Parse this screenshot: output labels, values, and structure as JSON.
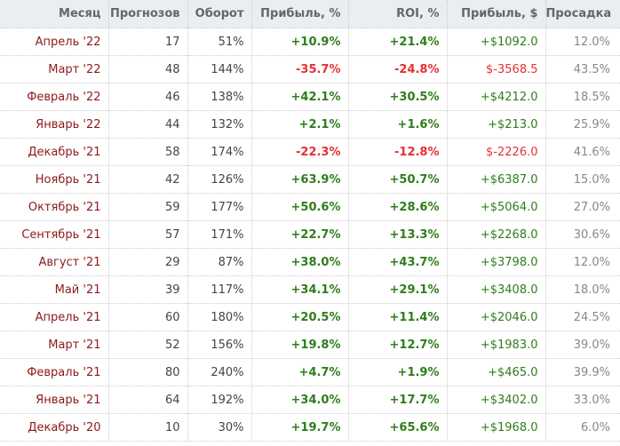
{
  "headers": [
    "Месяц",
    "Прогнозов",
    "Оборот",
    "Прибыль, %",
    "ROI, %",
    "Прибыль, $",
    "Просадка"
  ],
  "rows": [
    [
      "Апрель '22",
      "17",
      "51%",
      "+10.9%",
      "+21.4%",
      "+$1092.0",
      "12.0%"
    ],
    [
      "Март '22",
      "48",
      "144%",
      "-35.7%",
      "-24.8%",
      "$-3568.5",
      "43.5%"
    ],
    [
      "Февраль '22",
      "46",
      "138%",
      "+42.1%",
      "+30.5%",
      "+$4212.0",
      "18.5%"
    ],
    [
      "Январь '22",
      "44",
      "132%",
      "+2.1%",
      "+1.6%",
      "+$213.0",
      "25.9%"
    ],
    [
      "Декабрь '21",
      "58",
      "174%",
      "-22.3%",
      "-12.8%",
      "$-2226.0",
      "41.6%"
    ],
    [
      "Ноябрь '21",
      "42",
      "126%",
      "+63.9%",
      "+50.7%",
      "+$6387.0",
      "15.0%"
    ],
    [
      "Октябрь '21",
      "59",
      "177%",
      "+50.6%",
      "+28.6%",
      "+$5064.0",
      "27.0%"
    ],
    [
      "Сентябрь '21",
      "57",
      "171%",
      "+22.7%",
      "+13.3%",
      "+$2268.0",
      "30.6%"
    ],
    [
      "Август '21",
      "29",
      "87%",
      "+38.0%",
      "+43.7%",
      "+$3798.0",
      "12.0%"
    ],
    [
      "Май '21",
      "39",
      "117%",
      "+34.1%",
      "+29.1%",
      "+$3408.0",
      "18.0%"
    ],
    [
      "Апрель '21",
      "60",
      "180%",
      "+20.5%",
      "+11.4%",
      "+$2046.0",
      "24.5%"
    ],
    [
      "Март '21",
      "52",
      "156%",
      "+19.8%",
      "+12.7%",
      "+$1983.0",
      "39.0%"
    ],
    [
      "Февраль '21",
      "80",
      "240%",
      "+4.7%",
      "+1.9%",
      "+$465.0",
      "39.9%"
    ],
    [
      "Январь '21",
      "64",
      "192%",
      "+34.0%",
      "+17.7%",
      "+$3402.0",
      "33.0%"
    ],
    [
      "Декабрь '20",
      "10",
      "30%",
      "+19.7%",
      "+65.6%",
      "+$1968.0",
      "6.0%"
    ]
  ]
}
